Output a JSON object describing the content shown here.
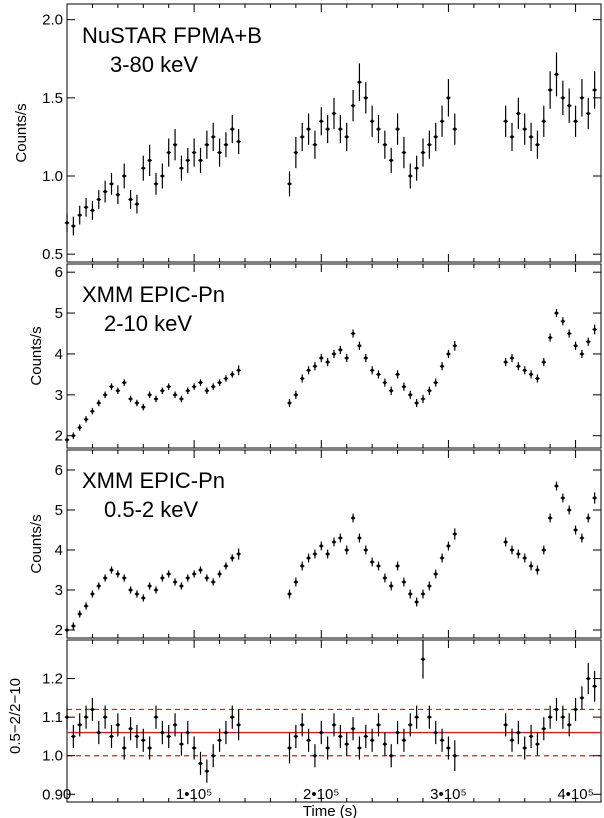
{
  "chart_data": {
    "type": "scatter",
    "shared_x": {
      "label": "Time (s)",
      "range": [
        0,
        420000
      ],
      "ticks": [
        {
          "value": 0,
          "label": "0"
        },
        {
          "value": 100000,
          "label": "1•10⁵"
        },
        {
          "value": 200000,
          "label": "2•10⁵"
        },
        {
          "value": 300000,
          "label": "3•10⁵"
        },
        {
          "value": 400000,
          "label": "4•10⁵"
        }
      ]
    },
    "panels": [
      {
        "id": "nustar",
        "title_line1": "NuSTAR FPMA+B",
        "title_line2": "3-80 keV",
        "ylabel": "Counts/s",
        "ylim": [
          0.45,
          2.1
        ],
        "yticks": [
          {
            "value": 0.5,
            "label": "0.5"
          },
          {
            "value": 1.0,
            "label": "1.0"
          },
          {
            "value": 1.5,
            "label": "1.5"
          },
          {
            "value": 2.0,
            "label": "2.0"
          }
        ],
        "series": {
          "x": [
            0,
            5000,
            10000,
            15000,
            20000,
            25000,
            30000,
            35000,
            40000,
            45000,
            50000,
            55000,
            60000,
            65000,
            70000,
            75000,
            80000,
            85000,
            90000,
            95000,
            100000,
            105000,
            110000,
            115000,
            120000,
            125000,
            130000,
            135000,
            175000,
            180000,
            185000,
            190000,
            195000,
            200000,
            205000,
            210000,
            215000,
            220000,
            225000,
            230000,
            235000,
            240000,
            245000,
            250000,
            255000,
            260000,
            265000,
            270000,
            275000,
            280000,
            285000,
            290000,
            295000,
            300000,
            305000,
            345000,
            350000,
            355000,
            360000,
            365000,
            370000,
            375000,
            380000,
            385000,
            390000,
            395000,
            400000,
            405000,
            410000,
            415000
          ],
          "y": [
            0.7,
            0.68,
            0.75,
            0.8,
            0.78,
            0.85,
            0.9,
            0.95,
            0.88,
            1.0,
            0.85,
            0.82,
            1.05,
            1.1,
            0.95,
            1.0,
            1.15,
            1.2,
            1.05,
            1.1,
            1.15,
            1.1,
            1.2,
            1.25,
            1.15,
            1.2,
            1.3,
            1.22,
            0.95,
            1.15,
            1.25,
            1.3,
            1.2,
            1.35,
            1.3,
            1.4,
            1.3,
            1.25,
            1.45,
            1.6,
            1.5,
            1.35,
            1.3,
            1.2,
            1.1,
            1.3,
            1.15,
            1.0,
            1.05,
            1.15,
            1.2,
            1.25,
            1.35,
            1.5,
            1.3,
            1.35,
            1.25,
            1.4,
            1.3,
            1.25,
            1.2,
            1.35,
            1.55,
            1.65,
            1.5,
            1.45,
            1.35,
            1.5,
            1.4,
            1.55
          ],
          "err": [
            0.06,
            0.06,
            0.06,
            0.06,
            0.06,
            0.06,
            0.07,
            0.07,
            0.06,
            0.08,
            0.06,
            0.06,
            0.08,
            0.1,
            0.07,
            0.08,
            0.09,
            0.1,
            0.08,
            0.08,
            0.09,
            0.08,
            0.09,
            0.09,
            0.09,
            0.08,
            0.09,
            0.08,
            0.08,
            0.1,
            0.09,
            0.1,
            0.09,
            0.09,
            0.09,
            0.1,
            0.09,
            0.09,
            0.1,
            0.12,
            0.1,
            0.1,
            0.09,
            0.09,
            0.08,
            0.1,
            0.1,
            0.08,
            0.08,
            0.09,
            0.09,
            0.09,
            0.1,
            0.12,
            0.1,
            0.1,
            0.09,
            0.1,
            0.1,
            0.09,
            0.09,
            0.1,
            0.12,
            0.14,
            0.11,
            0.11,
            0.1,
            0.12,
            0.1,
            0.12
          ]
        }
      },
      {
        "id": "xmm-hard",
        "title_line1": "XMM EPIC-Pn",
        "title_line2": "2-10 keV",
        "ylabel": "Counts/s",
        "ylim": [
          1.7,
          6.2
        ],
        "yticks": [
          {
            "value": 2,
            "label": "2"
          },
          {
            "value": 3,
            "label": "3"
          },
          {
            "value": 4,
            "label": "4"
          },
          {
            "value": 5,
            "label": "5"
          },
          {
            "value": 6,
            "label": "6"
          }
        ],
        "series": {
          "x": [
            0,
            5000,
            10000,
            15000,
            20000,
            25000,
            30000,
            35000,
            40000,
            45000,
            50000,
            55000,
            60000,
            65000,
            70000,
            75000,
            80000,
            85000,
            90000,
            95000,
            100000,
            105000,
            110000,
            115000,
            120000,
            125000,
            130000,
            135000,
            175000,
            180000,
            185000,
            190000,
            195000,
            200000,
            205000,
            210000,
            215000,
            220000,
            225000,
            230000,
            235000,
            240000,
            245000,
            250000,
            255000,
            260000,
            265000,
            270000,
            275000,
            280000,
            285000,
            290000,
            295000,
            300000,
            305000,
            345000,
            350000,
            355000,
            360000,
            365000,
            370000,
            375000,
            380000,
            385000,
            390000,
            395000,
            400000,
            405000,
            410000,
            415000
          ],
          "y": [
            1.9,
            2.0,
            2.2,
            2.4,
            2.6,
            2.8,
            3.0,
            3.2,
            3.1,
            3.3,
            2.9,
            2.8,
            2.7,
            3.0,
            2.9,
            3.1,
            3.2,
            3.0,
            2.9,
            3.1,
            3.2,
            3.3,
            3.1,
            3.2,
            3.3,
            3.4,
            3.5,
            3.6,
            2.8,
            3.0,
            3.4,
            3.6,
            3.7,
            3.9,
            3.8,
            4.0,
            4.1,
            3.9,
            4.5,
            4.2,
            3.9,
            3.6,
            3.5,
            3.3,
            3.1,
            3.5,
            3.2,
            3.0,
            2.8,
            2.9,
            3.1,
            3.3,
            3.7,
            4.0,
            4.2,
            3.8,
            3.9,
            3.7,
            3.6,
            3.5,
            3.4,
            3.8,
            4.4,
            5.0,
            4.8,
            4.5,
            4.2,
            4.0,
            4.3,
            4.6
          ],
          "err": [
            0.08,
            0.08,
            0.08,
            0.08,
            0.08,
            0.08,
            0.08,
            0.08,
            0.08,
            0.08,
            0.08,
            0.08,
            0.08,
            0.08,
            0.08,
            0.08,
            0.08,
            0.08,
            0.08,
            0.08,
            0.08,
            0.08,
            0.08,
            0.08,
            0.08,
            0.08,
            0.08,
            0.12,
            0.1,
            0.1,
            0.1,
            0.1,
            0.1,
            0.1,
            0.1,
            0.1,
            0.1,
            0.1,
            0.1,
            0.1,
            0.1,
            0.1,
            0.1,
            0.1,
            0.1,
            0.1,
            0.1,
            0.1,
            0.1,
            0.1,
            0.1,
            0.1,
            0.1,
            0.1,
            0.12,
            0.1,
            0.1,
            0.1,
            0.1,
            0.1,
            0.1,
            0.1,
            0.1,
            0.1,
            0.1,
            0.1,
            0.1,
            0.1,
            0.1,
            0.12
          ]
        }
      },
      {
        "id": "xmm-soft",
        "title_line1": "XMM EPIC-Pn",
        "title_line2": "0.5-2 keV",
        "ylabel": "Counts/s",
        "ylim": [
          1.8,
          6.5
        ],
        "yticks": [
          {
            "value": 2,
            "label": "2"
          },
          {
            "value": 3,
            "label": "3"
          },
          {
            "value": 4,
            "label": "4"
          },
          {
            "value": 5,
            "label": "5"
          },
          {
            "value": 6,
            "label": "6"
          }
        ],
        "series": {
          "x": [
            0,
            5000,
            10000,
            15000,
            20000,
            25000,
            30000,
            35000,
            40000,
            45000,
            50000,
            55000,
            60000,
            65000,
            70000,
            75000,
            80000,
            85000,
            90000,
            95000,
            100000,
            105000,
            110000,
            115000,
            120000,
            125000,
            130000,
            135000,
            175000,
            180000,
            185000,
            190000,
            195000,
            200000,
            205000,
            210000,
            215000,
            220000,
            225000,
            230000,
            235000,
            240000,
            245000,
            250000,
            255000,
            260000,
            265000,
            270000,
            275000,
            280000,
            285000,
            290000,
            295000,
            300000,
            305000,
            345000,
            350000,
            355000,
            360000,
            365000,
            370000,
            375000,
            380000,
            385000,
            390000,
            395000,
            400000,
            405000,
            410000,
            415000
          ],
          "y": [
            2.0,
            2.1,
            2.4,
            2.6,
            2.9,
            3.1,
            3.3,
            3.5,
            3.4,
            3.3,
            3.0,
            2.9,
            2.8,
            3.1,
            3.0,
            3.3,
            3.4,
            3.2,
            3.1,
            3.3,
            3.4,
            3.5,
            3.3,
            3.2,
            3.4,
            3.6,
            3.8,
            3.9,
            2.9,
            3.2,
            3.6,
            3.8,
            3.9,
            4.1,
            3.9,
            4.2,
            4.3,
            4.0,
            4.8,
            4.3,
            4.0,
            3.7,
            3.6,
            3.3,
            3.1,
            3.6,
            3.2,
            2.9,
            2.7,
            2.9,
            3.1,
            3.4,
            3.8,
            4.1,
            4.4,
            4.2,
            4.0,
            3.9,
            3.8,
            3.6,
            3.5,
            4.0,
            4.8,
            5.6,
            5.3,
            5.0,
            4.5,
            4.3,
            4.8,
            5.3
          ],
          "err": [
            0.09,
            0.09,
            0.09,
            0.09,
            0.09,
            0.09,
            0.09,
            0.09,
            0.09,
            0.09,
            0.09,
            0.09,
            0.09,
            0.09,
            0.09,
            0.09,
            0.09,
            0.09,
            0.09,
            0.09,
            0.09,
            0.09,
            0.09,
            0.09,
            0.09,
            0.09,
            0.09,
            0.14,
            0.11,
            0.11,
            0.11,
            0.11,
            0.11,
            0.11,
            0.11,
            0.11,
            0.11,
            0.11,
            0.11,
            0.11,
            0.11,
            0.11,
            0.11,
            0.11,
            0.11,
            0.11,
            0.11,
            0.11,
            0.11,
            0.11,
            0.11,
            0.11,
            0.11,
            0.11,
            0.14,
            0.11,
            0.11,
            0.11,
            0.11,
            0.11,
            0.11,
            0.11,
            0.11,
            0.11,
            0.11,
            0.11,
            0.11,
            0.11,
            0.11,
            0.14
          ]
        }
      },
      {
        "id": "ratio",
        "title_line1": "",
        "title_line2": "",
        "ylabel": "0.5−2/2−10",
        "ylim": [
          0.88,
          1.3
        ],
        "yticks": [
          {
            "value": 0.9,
            "label": "0.9"
          },
          {
            "value": 1.0,
            "label": "1.0"
          },
          {
            "value": 1.1,
            "label": "1.1"
          },
          {
            "value": 1.2,
            "label": "1.2"
          }
        ],
        "reference_lines": {
          "solid": 1.06,
          "dashed": [
            1.0,
            1.12
          ],
          "color": "#d21f1f"
        },
        "series": {
          "x": [
            0,
            5000,
            10000,
            15000,
            20000,
            25000,
            30000,
            35000,
            40000,
            45000,
            50000,
            55000,
            60000,
            65000,
            70000,
            75000,
            80000,
            85000,
            90000,
            95000,
            100000,
            105000,
            110000,
            115000,
            120000,
            125000,
            130000,
            135000,
            175000,
            180000,
            185000,
            190000,
            195000,
            200000,
            205000,
            210000,
            215000,
            220000,
            225000,
            230000,
            235000,
            240000,
            245000,
            250000,
            255000,
            260000,
            265000,
            270000,
            275000,
            280000,
            285000,
            290000,
            295000,
            300000,
            305000,
            345000,
            350000,
            355000,
            360000,
            365000,
            370000,
            375000,
            380000,
            385000,
            390000,
            395000,
            400000,
            405000,
            410000,
            415000
          ],
          "y": [
            1.1,
            1.05,
            1.08,
            1.1,
            1.12,
            1.06,
            1.1,
            1.05,
            1.08,
            1.02,
            1.07,
            1.05,
            1.04,
            1.02,
            1.1,
            1.06,
            1.05,
            1.08,
            1.03,
            1.06,
            1.02,
            0.98,
            0.96,
            1.0,
            1.04,
            1.06,
            1.1,
            1.08,
            1.02,
            1.05,
            1.08,
            1.04,
            1.0,
            1.06,
            1.02,
            1.08,
            1.05,
            1.03,
            1.07,
            1.02,
            1.05,
            1.04,
            1.08,
            1.03,
            1.0,
            1.06,
            1.04,
            1.08,
            1.1,
            1.25,
            1.1,
            1.06,
            1.04,
            1.02,
            1.0,
            1.08,
            1.04,
            1.06,
            1.02,
            1.05,
            1.03,
            1.07,
            1.1,
            1.12,
            1.1,
            1.08,
            1.12,
            1.15,
            1.2,
            1.18
          ],
          "err": [
            0.03,
            0.03,
            0.03,
            0.03,
            0.03,
            0.03,
            0.03,
            0.03,
            0.03,
            0.03,
            0.03,
            0.03,
            0.03,
            0.03,
            0.03,
            0.03,
            0.03,
            0.03,
            0.03,
            0.03,
            0.03,
            0.03,
            0.03,
            0.03,
            0.03,
            0.03,
            0.03,
            0.04,
            0.04,
            0.03,
            0.03,
            0.03,
            0.03,
            0.03,
            0.03,
            0.03,
            0.03,
            0.03,
            0.03,
            0.03,
            0.03,
            0.03,
            0.03,
            0.03,
            0.03,
            0.03,
            0.03,
            0.03,
            0.03,
            0.05,
            0.03,
            0.03,
            0.03,
            0.03,
            0.04,
            0.03,
            0.03,
            0.03,
            0.03,
            0.03,
            0.03,
            0.03,
            0.03,
            0.03,
            0.03,
            0.03,
            0.03,
            0.03,
            0.04,
            0.04
          ]
        }
      }
    ]
  }
}
